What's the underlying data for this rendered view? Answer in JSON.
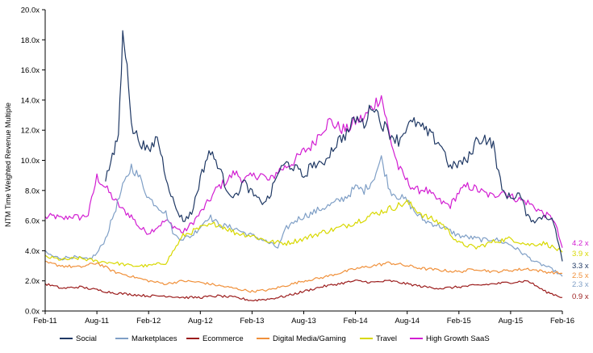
{
  "chart_data": {
    "type": "line",
    "title": "",
    "xlabel": "",
    "ylabel": "NTM Time Weighted Revenue Multiple",
    "ylim": [
      0,
      20
    ],
    "yticks": [
      "0.0x",
      "2.0x",
      "4.0x",
      "6.0x",
      "8.0x",
      "10.0x",
      "12.0x",
      "14.0x",
      "16.0x",
      "18.0x",
      "20.0x"
    ],
    "xticks": [
      "Feb-11",
      "Aug-11",
      "Feb-12",
      "Aug-12",
      "Feb-13",
      "Aug-13",
      "Feb-14",
      "Aug-14",
      "Feb-15",
      "Aug-15",
      "Feb-16"
    ],
    "grid": false,
    "legend_position": "bottom",
    "x_period_months": 3,
    "x_unit": "months from Feb-11 (0 = Feb-11, 60 = Feb-16)",
    "series": [
      {
        "name": "Social",
        "color": "#1f3864",
        "start_month": 7,
        "end_label": "3.3 x",
        "values": [
          [
            7,
            8.8
          ],
          [
            8,
            10.5
          ],
          [
            8.5,
            11.8
          ],
          [
            9,
            18.2
          ],
          [
            9.5,
            16.8
          ],
          [
            10,
            12.2
          ],
          [
            11,
            11.3
          ],
          [
            12,
            10.5
          ],
          [
            13,
            11.6
          ],
          [
            14,
            9.0
          ],
          [
            15,
            7.0
          ],
          [
            16,
            6.0
          ],
          [
            17,
            6.5
          ],
          [
            18,
            8.8
          ],
          [
            19,
            10.6
          ],
          [
            20,
            9.8
          ],
          [
            21,
            8.2
          ],
          [
            22,
            7.5
          ],
          [
            23,
            8.6
          ],
          [
            24,
            7.8
          ],
          [
            25,
            7.2
          ],
          [
            26,
            7.5
          ],
          [
            27,
            9.2
          ],
          [
            28,
            9.8
          ],
          [
            29,
            9.5
          ],
          [
            30,
            8.9
          ],
          [
            31,
            9.8
          ],
          [
            32,
            9.6
          ],
          [
            33,
            10.5
          ],
          [
            34,
            11.3
          ],
          [
            35,
            11.8
          ],
          [
            36,
            12.8
          ],
          [
            37,
            12.4
          ],
          [
            38,
            13.8
          ],
          [
            39,
            12.5
          ],
          [
            40,
            11.8
          ],
          [
            41,
            11.3
          ],
          [
            42,
            12.3
          ],
          [
            43,
            12.5
          ],
          [
            44,
            12.0
          ],
          [
            45,
            11.5
          ],
          [
            46,
            11.0
          ],
          [
            47,
            9.5
          ],
          [
            48,
            9.8
          ],
          [
            49,
            10.0
          ],
          [
            50,
            11.3
          ],
          [
            51,
            11.5
          ],
          [
            52,
            11.0
          ],
          [
            53,
            8.0
          ],
          [
            54,
            7.5
          ],
          [
            55,
            7.8
          ],
          [
            56,
            6.2
          ],
          [
            57,
            6.0
          ],
          [
            58,
            6.4
          ],
          [
            59,
            5.9
          ],
          [
            60,
            3.3
          ]
        ]
      },
      {
        "name": "Marketplaces",
        "color": "#7f9fc6",
        "start_month": 0,
        "end_label": "2.3 x",
        "values": [
          [
            0,
            3.9
          ],
          [
            1,
            3.6
          ],
          [
            2,
            3.5
          ],
          [
            3,
            3.6
          ],
          [
            4,
            3.5
          ],
          [
            5,
            3.4
          ],
          [
            6,
            3.8
          ],
          [
            7,
            4.8
          ],
          [
            8,
            6.5
          ],
          [
            9,
            8.2
          ],
          [
            10,
            9.6
          ],
          [
            11,
            8.8
          ],
          [
            12,
            7.5
          ],
          [
            13,
            7.0
          ],
          [
            14,
            6.5
          ],
          [
            15,
            5.0
          ],
          [
            16,
            4.8
          ],
          [
            17,
            5.0
          ],
          [
            18,
            5.6
          ],
          [
            19,
            6.3
          ],
          [
            20,
            5.8
          ],
          [
            21,
            5.6
          ],
          [
            22,
            5.5
          ],
          [
            23,
            5.2
          ],
          [
            24,
            5.0
          ],
          [
            25,
            4.8
          ],
          [
            26,
            4.5
          ],
          [
            27,
            4.2
          ],
          [
            28,
            5.5
          ],
          [
            29,
            6.0
          ],
          [
            30,
            6.3
          ],
          [
            31,
            6.5
          ],
          [
            32,
            6.8
          ],
          [
            33,
            7.0
          ],
          [
            34,
            7.3
          ],
          [
            35,
            7.6
          ],
          [
            36,
            8.2
          ],
          [
            37,
            8.0
          ],
          [
            38,
            8.7
          ],
          [
            39,
            10.1
          ],
          [
            40,
            8.0
          ],
          [
            41,
            7.6
          ],
          [
            42,
            7.3
          ],
          [
            43,
            6.5
          ],
          [
            44,
            6.0
          ],
          [
            45,
            5.8
          ],
          [
            46,
            5.6
          ],
          [
            47,
            5.3
          ],
          [
            48,
            5.0
          ],
          [
            49,
            4.9
          ],
          [
            50,
            4.8
          ],
          [
            51,
            4.7
          ],
          [
            52,
            4.8
          ],
          [
            53,
            4.6
          ],
          [
            54,
            4.4
          ],
          [
            55,
            4.0
          ],
          [
            56,
            3.6
          ],
          [
            57,
            3.2
          ],
          [
            58,
            3.0
          ],
          [
            59,
            2.7
          ],
          [
            60,
            2.3
          ]
        ]
      },
      {
        "name": "Ecommerce",
        "color": "#9b1c1c",
        "start_month": 0,
        "end_label": "0.9 x",
        "values": [
          [
            0,
            1.8
          ],
          [
            2,
            1.5
          ],
          [
            4,
            1.6
          ],
          [
            6,
            1.4
          ],
          [
            8,
            1.2
          ],
          [
            10,
            1.1
          ],
          [
            12,
            1.0
          ],
          [
            14,
            1.0
          ],
          [
            16,
            0.9
          ],
          [
            18,
            0.9
          ],
          [
            20,
            1.0
          ],
          [
            22,
            0.9
          ],
          [
            24,
            0.7
          ],
          [
            26,
            0.8
          ],
          [
            28,
            1.0
          ],
          [
            30,
            1.3
          ],
          [
            32,
            1.6
          ],
          [
            34,
            1.8
          ],
          [
            36,
            2.0
          ],
          [
            38,
            1.9
          ],
          [
            40,
            2.0
          ],
          [
            42,
            1.8
          ],
          [
            44,
            1.6
          ],
          [
            46,
            1.5
          ],
          [
            48,
            1.6
          ],
          [
            50,
            1.7
          ],
          [
            52,
            1.8
          ],
          [
            54,
            1.9
          ],
          [
            56,
            2.0
          ],
          [
            58,
            1.3
          ],
          [
            60,
            0.9
          ]
        ]
      },
      {
        "name": "Digital Media/Gaming",
        "color": "#f0903a",
        "start_month": 0,
        "end_label": "2.5 x",
        "values": [
          [
            0,
            3.2
          ],
          [
            2,
            3.0
          ],
          [
            4,
            2.9
          ],
          [
            6,
            3.2
          ],
          [
            8,
            2.6
          ],
          [
            10,
            2.3
          ],
          [
            12,
            2.0
          ],
          [
            14,
            1.8
          ],
          [
            16,
            2.0
          ],
          [
            18,
            1.9
          ],
          [
            20,
            1.7
          ],
          [
            22,
            1.5
          ],
          [
            24,
            1.3
          ],
          [
            26,
            1.4
          ],
          [
            28,
            1.7
          ],
          [
            30,
            2.0
          ],
          [
            32,
            2.2
          ],
          [
            34,
            2.5
          ],
          [
            36,
            2.8
          ],
          [
            38,
            3.0
          ],
          [
            40,
            3.2
          ],
          [
            42,
            3.0
          ],
          [
            44,
            2.8
          ],
          [
            46,
            2.7
          ],
          [
            48,
            2.6
          ],
          [
            50,
            2.8
          ],
          [
            52,
            2.6
          ],
          [
            54,
            2.7
          ],
          [
            56,
            2.8
          ],
          [
            58,
            2.6
          ],
          [
            60,
            2.5
          ]
        ]
      },
      {
        "name": "Travel",
        "color": "#d8d800",
        "start_month": 0,
        "end_label": "3.9 x",
        "values": [
          [
            0,
            3.6
          ],
          [
            2,
            3.4
          ],
          [
            4,
            3.5
          ],
          [
            6,
            3.3
          ],
          [
            8,
            3.2
          ],
          [
            10,
            3.0
          ],
          [
            12,
            3.0
          ],
          [
            14,
            3.2
          ],
          [
            16,
            5.0
          ],
          [
            18,
            5.5
          ],
          [
            20,
            5.8
          ],
          [
            22,
            5.2
          ],
          [
            24,
            5.0
          ],
          [
            26,
            4.6
          ],
          [
            28,
            4.5
          ],
          [
            30,
            4.8
          ],
          [
            32,
            5.2
          ],
          [
            34,
            5.5
          ],
          [
            36,
            5.9
          ],
          [
            38,
            6.4
          ],
          [
            40,
            6.8
          ],
          [
            42,
            7.2
          ],
          [
            44,
            6.3
          ],
          [
            46,
            5.8
          ],
          [
            48,
            4.5
          ],
          [
            50,
            4.2
          ],
          [
            52,
            4.6
          ],
          [
            54,
            4.8
          ],
          [
            56,
            4.4
          ],
          [
            58,
            4.5
          ],
          [
            60,
            3.9
          ]
        ]
      },
      {
        "name": "High Growth SaaS",
        "color": "#d21ed2",
        "start_month": 0,
        "end_label": "4.2 x",
        "values": [
          [
            0,
            6.2
          ],
          [
            1,
            6.3
          ],
          [
            2,
            6.1
          ],
          [
            3,
            6.3
          ],
          [
            4,
            6.2
          ],
          [
            5,
            6.4
          ],
          [
            6,
            8.9
          ],
          [
            7,
            8.2
          ],
          [
            8,
            7.4
          ],
          [
            9,
            6.7
          ],
          [
            10,
            6.3
          ],
          [
            11,
            5.5
          ],
          [
            12,
            5.2
          ],
          [
            13,
            5.6
          ],
          [
            14,
            6.0
          ],
          [
            15,
            5.6
          ],
          [
            16,
            5.2
          ],
          [
            17,
            5.8
          ],
          [
            18,
            6.5
          ],
          [
            19,
            7.3
          ],
          [
            20,
            8.2
          ],
          [
            21,
            8.6
          ],
          [
            22,
            9.2
          ],
          [
            23,
            8.7
          ],
          [
            24,
            8.9
          ],
          [
            25,
            9.1
          ],
          [
            26,
            8.6
          ],
          [
            27,
            9.3
          ],
          [
            28,
            9.6
          ],
          [
            29,
            10.0
          ],
          [
            30,
            10.6
          ],
          [
            31,
            11.0
          ],
          [
            32,
            12.0
          ],
          [
            33,
            12.6
          ],
          [
            34,
            12.2
          ],
          [
            35,
            12.0
          ],
          [
            36,
            12.6
          ],
          [
            37,
            12.8
          ],
          [
            38,
            13.6
          ],
          [
            39,
            14.3
          ],
          [
            40,
            11.5
          ],
          [
            41,
            9.5
          ],
          [
            42,
            8.6
          ],
          [
            43,
            8.0
          ],
          [
            44,
            8.1
          ],
          [
            45,
            7.6
          ],
          [
            46,
            7.2
          ],
          [
            47,
            7.0
          ],
          [
            48,
            7.9
          ],
          [
            49,
            8.3
          ],
          [
            50,
            8.1
          ],
          [
            51,
            7.8
          ],
          [
            52,
            7.6
          ],
          [
            53,
            8.0
          ],
          [
            54,
            7.6
          ],
          [
            55,
            7.4
          ],
          [
            56,
            7.2
          ],
          [
            57,
            6.8
          ],
          [
            58,
            6.4
          ],
          [
            59,
            6.1
          ],
          [
            60,
            4.2
          ]
        ]
      }
    ]
  }
}
